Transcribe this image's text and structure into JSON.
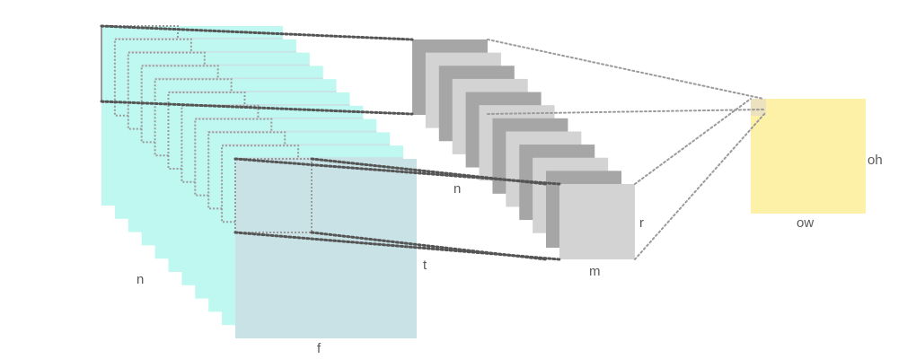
{
  "labels": {
    "input_depth": "n",
    "input_width": "f",
    "input_height": "t",
    "filter_count": "n",
    "kernel_width": "m",
    "kernel_height": "r",
    "output_width": "ow",
    "output_height": "oh"
  },
  "colors": {
    "input_edge": "#bff8f0",
    "input_face": "#c9e2e5",
    "filter_dark": "#a6a6a6",
    "filter_light": "#d3d3d3",
    "output_face": "#fdf1a8",
    "output_pixel": "#ece2c0",
    "dotted_dark": "#555555",
    "dotted_light": "#9a9a9a",
    "label": "#5a5a5a"
  },
  "structure": {
    "input_slices": 11,
    "filter_slices": 12
  }
}
